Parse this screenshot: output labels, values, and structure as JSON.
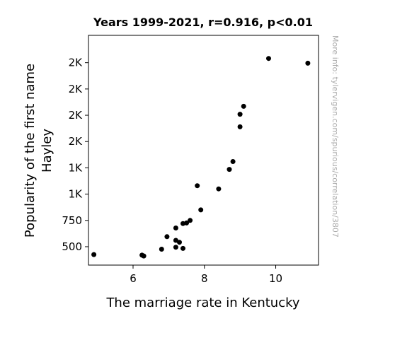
{
  "chart_data": {
    "type": "scatter",
    "title": "Years 1999-2021, r=0.916, p<0.01",
    "xlabel": "The marriage rate in Kentucky",
    "ylabel_lines": [
      "Popularity of the first name",
      "Hayley"
    ],
    "watermark": "More info: tylervigen.com/spurious/correlation/3807",
    "xlim": [
      4.75,
      11.2
    ],
    "ylim": [
      325,
      2510
    ],
    "xticks": [
      {
        "value": 6,
        "label": "6"
      },
      {
        "value": 8,
        "label": "8"
      },
      {
        "value": 10,
        "label": "10"
      }
    ],
    "yticks": [
      {
        "value": 500,
        "label": "500"
      },
      {
        "value": 750,
        "label": "750"
      },
      {
        "value": 1000,
        "label": "1K"
      },
      {
        "value": 1250,
        "label": "1K"
      },
      {
        "value": 1500,
        "label": "2K"
      },
      {
        "value": 1750,
        "label": "2K"
      },
      {
        "value": 2000,
        "label": "2K"
      },
      {
        "value": 2250,
        "label": "2K"
      }
    ],
    "point_color": "#000000",
    "points": [
      {
        "x": 4.9,
        "y": 425
      },
      {
        "x": 6.25,
        "y": 420
      },
      {
        "x": 6.3,
        "y": 412
      },
      {
        "x": 6.8,
        "y": 476
      },
      {
        "x": 6.95,
        "y": 595
      },
      {
        "x": 7.2,
        "y": 560
      },
      {
        "x": 7.2,
        "y": 495
      },
      {
        "x": 7.3,
        "y": 542
      },
      {
        "x": 7.4,
        "y": 484
      },
      {
        "x": 7.2,
        "y": 678
      },
      {
        "x": 7.4,
        "y": 720
      },
      {
        "x": 7.5,
        "y": 726
      },
      {
        "x": 7.6,
        "y": 750
      },
      {
        "x": 7.9,
        "y": 850
      },
      {
        "x": 7.8,
        "y": 1080
      },
      {
        "x": 8.4,
        "y": 1050
      },
      {
        "x": 8.7,
        "y": 1235
      },
      {
        "x": 8.8,
        "y": 1310
      },
      {
        "x": 9.0,
        "y": 1640
      },
      {
        "x": 9.0,
        "y": 1760
      },
      {
        "x": 9.1,
        "y": 1835
      },
      {
        "x": 9.8,
        "y": 2290
      },
      {
        "x": 10.9,
        "y": 2245
      }
    ]
  }
}
